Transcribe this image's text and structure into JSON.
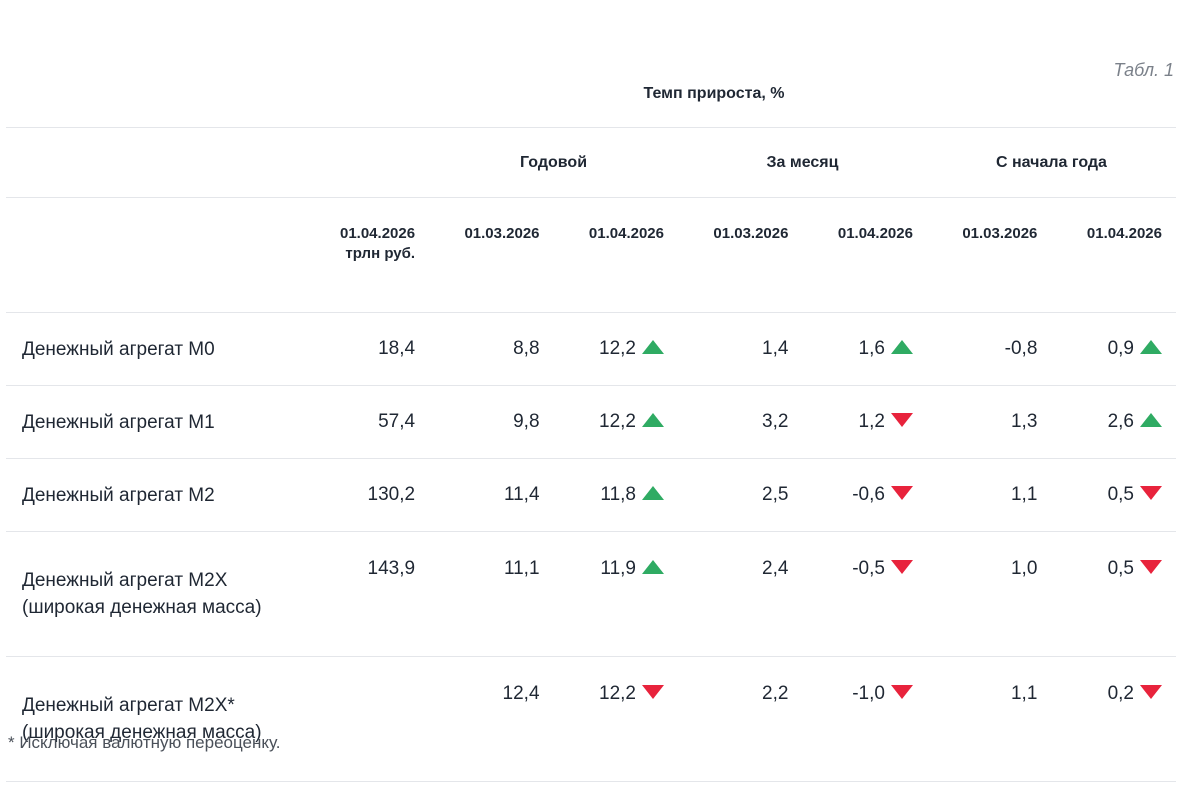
{
  "caption": "Табл. 1",
  "header": {
    "super": "Темп прироста, %",
    "groups": [
      "Годовой",
      "За месяц",
      "С начала года"
    ],
    "first_col": {
      "date": "01.04.2026",
      "unit": "трлн руб."
    },
    "dates": [
      "01.03.2026",
      "01.04.2026",
      "01.03.2026",
      "01.04.2026",
      "01.03.2026",
      "01.04.2026"
    ]
  },
  "rows": [
    {
      "name": "Денежный агрегат М0",
      "name2": "",
      "level": "18,4",
      "values": [
        "8,8",
        "12,2",
        "1,4",
        "1,6",
        "-0,8",
        "0,9"
      ],
      "trends": [
        "",
        "up",
        "",
        "up",
        "",
        "up"
      ]
    },
    {
      "name": "Денежный агрегат М1",
      "name2": "",
      "level": "57,4",
      "values": [
        "9,8",
        "12,2",
        "3,2",
        "1,2",
        "1,3",
        "2,6"
      ],
      "trends": [
        "",
        "up",
        "",
        "down",
        "",
        "up"
      ]
    },
    {
      "name": "Денежный агрегат М2",
      "name2": "",
      "level": "130,2",
      "values": [
        "11,4",
        "11,8",
        "2,5",
        "-0,6",
        "1,1",
        "0,5"
      ],
      "trends": [
        "",
        "up",
        "",
        "down",
        "",
        "down"
      ]
    },
    {
      "name": "Денежный агрегат М2Х",
      "name2": "(широкая денежная масса)",
      "level": "143,9",
      "values": [
        "11,1",
        "11,9",
        "2,4",
        "-0,5",
        "1,0",
        "0,5"
      ],
      "trends": [
        "",
        "up",
        "",
        "down",
        "",
        "down"
      ]
    },
    {
      "name": "Денежный агрегат М2Х*",
      "name2": "(широкая денежная масса)",
      "level": "",
      "values": [
        "12,4",
        "12,2",
        "2,2",
        "-1,0",
        "1,1",
        "0,2"
      ],
      "trends": [
        "",
        "down",
        "",
        "down",
        "",
        "down"
      ]
    }
  ],
  "trend_colors": {
    "up": "#2fab63",
    "down": "#e8233c"
  },
  "trend_icons": {
    "up": "triangle-up-icon",
    "down": "triangle-down-icon"
  },
  "footnote": "* Исключая валютную переоценку."
}
